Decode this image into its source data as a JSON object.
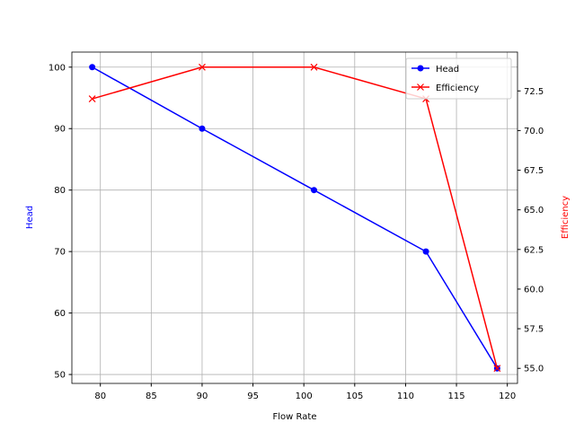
{
  "chart_data": {
    "type": "line",
    "title": "",
    "xlabel": "Flow Rate",
    "ylabel_left": "Head",
    "ylabel_right": "Efficiency",
    "xlim": [
      77.2,
      121.0
    ],
    "ylim_left": [
      48.55,
      102.45
    ],
    "ylim_right": [
      54.05,
      74.95
    ],
    "xticks": [
      80,
      85,
      90,
      95,
      100,
      105,
      110,
      115,
      120
    ],
    "yticks_left": [
      50,
      60,
      70,
      80,
      90,
      100
    ],
    "yticks_right": [
      "55.0",
      "57.5",
      "60.0",
      "62.5",
      "65.0",
      "67.5",
      "70.0",
      "72.5"
    ],
    "grid": true,
    "legend_position": "upper-right",
    "x": [
      79.2,
      90,
      101,
      112,
      119
    ],
    "series": [
      {
        "name": "Head",
        "axis": "left",
        "color": "#0000ff",
        "marker": "circle",
        "values": [
          100,
          90,
          80,
          70,
          51
        ]
      },
      {
        "name": "Efficiency",
        "axis": "right",
        "color": "#ff0000",
        "marker": "x",
        "values": [
          72,
          74,
          74,
          72,
          55
        ]
      }
    ]
  }
}
